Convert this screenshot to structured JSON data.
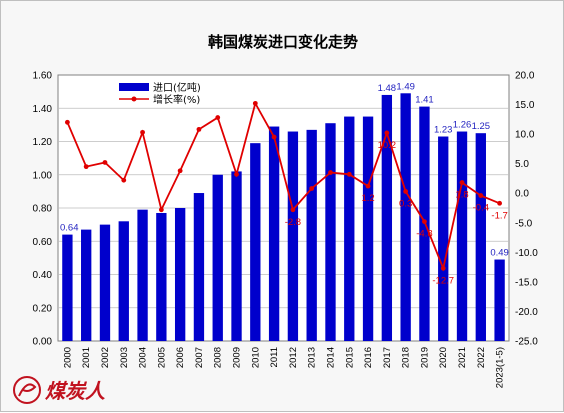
{
  "chart_data": {
    "type": "bar",
    "title": "韩国煤炭进口变化走势",
    "categories": [
      "2000",
      "2001",
      "2002",
      "2003",
      "2004",
      "2005",
      "2006",
      "2007",
      "2008",
      "2009",
      "2010",
      "2011",
      "2012",
      "2013",
      "2014",
      "2015",
      "2016",
      "2017",
      "2018",
      "2019",
      "2020",
      "2021",
      "2022",
      "2023(1-5)"
    ],
    "y_left": {
      "min": 0,
      "max": 1.6,
      "step": 0.2,
      "ticks": [
        "0.00",
        "0.20",
        "0.40",
        "0.60",
        "0.80",
        "1.00",
        "1.20",
        "1.40",
        "1.60"
      ]
    },
    "y_right": {
      "min": -25,
      "max": 20,
      "step": 5,
      "ticks": [
        "-25.0",
        "-20.0",
        "-15.0",
        "-10.0",
        "-5.0",
        "0.0",
        "5.0",
        "10.0",
        "15.0",
        "20.0"
      ]
    },
    "grid": true,
    "legend_position": "top-left",
    "series": [
      {
        "name": "进口(亿吨)",
        "kind": "bar",
        "axis": "left",
        "color": "#0000cc",
        "values": [
          0.64,
          0.67,
          0.7,
          0.72,
          0.79,
          0.77,
          0.8,
          0.89,
          1.0,
          1.02,
          1.19,
          1.29,
          1.26,
          1.27,
          1.31,
          1.35,
          1.35,
          1.48,
          1.49,
          1.41,
          1.23,
          1.26,
          1.25,
          0.49
        ],
        "labels": [
          {
            "index": 0,
            "text": "0.64"
          },
          {
            "index": 17,
            "text": "1.48"
          },
          {
            "index": 18,
            "text": "1.49"
          },
          {
            "index": 19,
            "text": "1.41"
          },
          {
            "index": 20,
            "text": "1.23"
          },
          {
            "index": 21,
            "text": "1.26"
          },
          {
            "index": 22,
            "text": "1.25"
          },
          {
            "index": 23,
            "text": "0.49"
          }
        ]
      },
      {
        "name": "增长率(%)",
        "kind": "line",
        "axis": "right",
        "color": "#e00000",
        "values": [
          12.0,
          4.5,
          5.2,
          2.2,
          10.3,
          -2.8,
          3.8,
          10.8,
          12.8,
          3.2,
          15.2,
          9.5,
          -2.8,
          0.8,
          3.5,
          3.2,
          1.2,
          10.2,
          0.3,
          -4.8,
          -12.7,
          1.8,
          -0.4,
          -1.7
        ],
        "labels": [
          {
            "index": 12,
            "text": "-2.8"
          },
          {
            "index": 16,
            "text": "1.2"
          },
          {
            "index": 17,
            "text": "10.2"
          },
          {
            "index": 18,
            "text": "0.3"
          },
          {
            "index": 19,
            "text": "-4.8"
          },
          {
            "index": 20,
            "text": "-12.7"
          },
          {
            "index": 21,
            "text": "1.8"
          },
          {
            "index": 22,
            "text": "-0.4"
          },
          {
            "index": 23,
            "text": "-1.7"
          }
        ]
      }
    ]
  },
  "logo": {
    "text": "煤炭人",
    "color": "#c1121f"
  }
}
